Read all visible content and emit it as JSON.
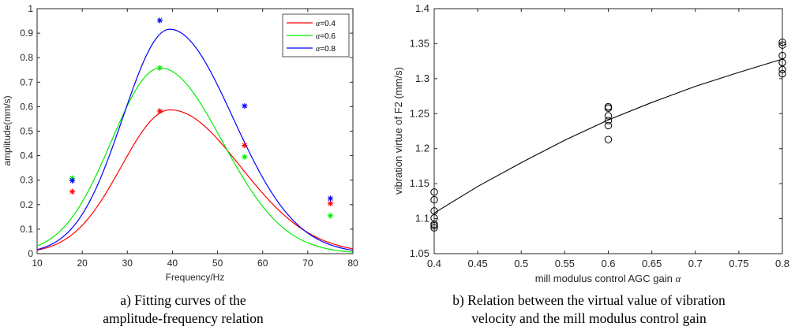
{
  "chart_data": [
    {
      "type": "line",
      "caption_lines": [
        "a) Fitting curves of the",
        "amplitude-frequency relation"
      ],
      "xlabel": "Frequency/Hz",
      "ylabel": "amplitude(mm/s)",
      "xlim": [
        10,
        80
      ],
      "ylim": [
        0,
        1
      ],
      "xticks": [
        10,
        20,
        30,
        40,
        50,
        60,
        70,
        80
      ],
      "yticks": [
        0,
        0.1,
        0.2,
        0.3,
        0.4,
        0.5,
        0.6,
        0.7,
        0.8,
        0.9,
        1
      ],
      "legend_position": "top-right",
      "grid": false,
      "series": [
        {
          "name": "α=0.4",
          "symbol": "α",
          "name_suffix": "=0.4",
          "color": "#ff0000",
          "points_x": [
            17.8,
            37.2,
            56,
            75
          ],
          "points_y": [
            0.253,
            0.582,
            0.442,
            0.205
          ],
          "curve": {
            "peak_x": 39.5,
            "peak_y": 0.587,
            "left_width": 15.3,
            "right_width": 22
          }
        },
        {
          "name": "α=0.6",
          "symbol": "α",
          "name_suffix": "=0.6",
          "color": "#00ee00",
          "points_x": [
            17.8,
            37.2,
            56,
            75
          ],
          "points_y": [
            0.308,
            0.758,
            0.395,
            0.155
          ],
          "curve": {
            "peak_x": 37.3,
            "peak_y": 0.758,
            "left_width": 15.3,
            "right_width": 19.4
          }
        },
        {
          "name": "α=0.8",
          "symbol": "α",
          "name_suffix": "=0.8",
          "color": "#0000ff",
          "points_x": [
            17.8,
            37.2,
            56,
            75
          ],
          "points_y": [
            0.298,
            0.952,
            0.603,
            0.225
          ],
          "curve": {
            "peak_x": 39.4,
            "peak_y": 0.916,
            "left_width": 14.7,
            "right_width": 19.8
          }
        }
      ]
    },
    {
      "type": "scatter",
      "caption_lines": [
        "b) Relation between the virtual value of vibration",
        "velocity and the mill modulus control gain"
      ],
      "xlabel": "mill modulus control AGC gain",
      "xlabel_symbol": "α",
      "ylabel": "vibration virtue of F2 (mm/s)",
      "xlim": [
        0.4,
        0.8
      ],
      "ylim": [
        1.05,
        1.4
      ],
      "xticks": [
        0.4,
        0.45,
        0.5,
        0.55,
        0.6,
        0.65,
        0.7,
        0.75,
        0.8
      ],
      "yticks": [
        1.05,
        1.1,
        1.15,
        1.2,
        1.25,
        1.3,
        1.35,
        1.4
      ],
      "grid": false,
      "points_x": [
        0.4,
        0.4,
        0.4,
        0.4,
        0.4,
        0.4,
        0.4,
        0.6,
        0.6,
        0.6,
        0.6,
        0.6,
        0.6,
        0.6,
        0.8,
        0.8,
        0.8,
        0.8,
        0.8,
        0.8,
        0.8
      ],
      "points_y": [
        1.138,
        1.127,
        1.111,
        1.101,
        1.09,
        1.087,
        1.092,
        1.26,
        1.258,
        1.247,
        1.24,
        1.233,
        1.213,
        1.258,
        1.352,
        1.348,
        1.333,
        1.323,
        1.313,
        1.307,
        1.323
      ],
      "fit_x": [
        0.4,
        0.45,
        0.5,
        0.55,
        0.6,
        0.65,
        0.7,
        0.75,
        0.8
      ],
      "fit_y": [
        1.108,
        1.146,
        1.18,
        1.212,
        1.241,
        1.266,
        1.289,
        1.309,
        1.328
      ]
    }
  ]
}
